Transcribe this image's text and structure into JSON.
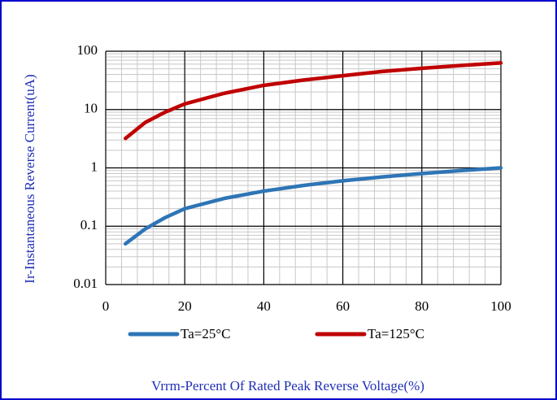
{
  "chart_data": {
    "type": "line",
    "xlabel": "Vrrm-Percent Of Rated Peak Reverse Voltage(%)",
    "ylabel": "Ir-Instantaneous Reverse Current(uA)",
    "x": [
      5,
      10,
      15,
      20,
      30,
      40,
      50,
      60,
      70,
      80,
      90,
      100
    ],
    "series": [
      {
        "name": "Ta=25°C",
        "color": "#2e75b6",
        "values": [
          0.05,
          0.09,
          0.14,
          0.2,
          0.3,
          0.4,
          0.5,
          0.6,
          0.7,
          0.8,
          0.9,
          1.0
        ]
      },
      {
        "name": "Ta=125°C",
        "color": "#c00000",
        "values": [
          3.2,
          6,
          9,
          12.5,
          19,
          26,
          32,
          38,
          45,
          51,
          57,
          63
        ]
      }
    ],
    "xlim": [
      0,
      100
    ],
    "xticks": [
      0,
      20,
      40,
      60,
      80,
      100
    ],
    "ylim": [
      0.01,
      100
    ],
    "yticks": [
      0.01,
      0.1,
      1,
      10,
      100
    ],
    "ylog": true,
    "grid": true,
    "minor_grid": true,
    "legend": "bottom"
  }
}
